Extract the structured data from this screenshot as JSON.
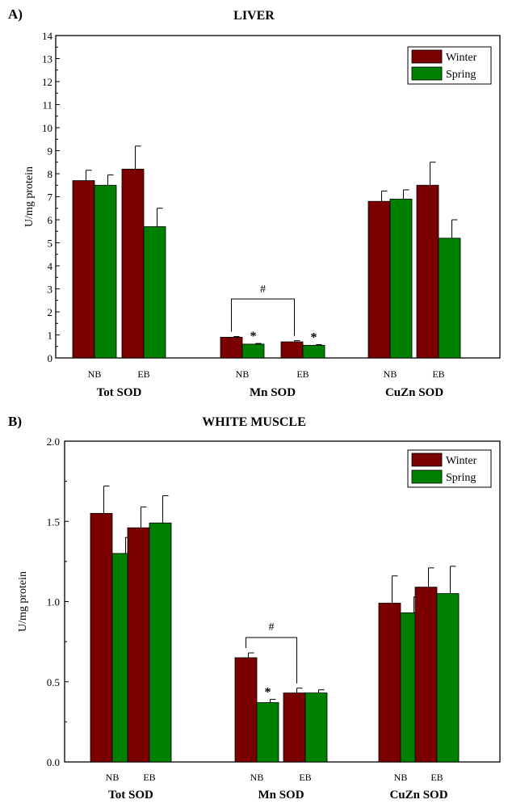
{
  "panels": [
    {
      "label": "A)",
      "title": "LIVER"
    },
    {
      "label": "B)",
      "title": "WHITE MUSCLE"
    }
  ],
  "colors": {
    "winter": "#7a0000",
    "spring": "#008000"
  },
  "chart_data": [
    {
      "type": "bar",
      "title": "LIVER",
      "ylabel": "U/mg protein",
      "xlabel": "",
      "ylim": [
        0,
        14
      ],
      "yticks": [
        "0",
        "1",
        "2",
        "3",
        "4",
        "5",
        "6",
        "7",
        "8",
        "9",
        "10",
        "11",
        "12",
        "13",
        "14"
      ],
      "groups": [
        "Tot SOD",
        "Mn SOD",
        "CuZn SOD"
      ],
      "subcategories": [
        "NB",
        "EB"
      ],
      "series": [
        {
          "name": "Winter",
          "values": [
            [
              7.7,
              8.2
            ],
            [
              0.9,
              0.7
            ],
            [
              6.8,
              7.5
            ]
          ],
          "errors": [
            [
              0.45,
              1.0
            ],
            [
              0.03,
              0.05
            ],
            [
              0.45,
              1.0
            ]
          ]
        },
        {
          "name": "Spring",
          "values": [
            [
              7.5,
              5.7
            ],
            [
              0.6,
              0.55
            ],
            [
              6.9,
              5.2
            ]
          ],
          "errors": [
            [
              0.45,
              0.8
            ],
            [
              0.03,
              0.03
            ],
            [
              0.4,
              0.8
            ]
          ]
        }
      ],
      "annotations": [
        {
          "text": "*",
          "group": 1,
          "sub": 0,
          "series": 1
        },
        {
          "text": "*",
          "group": 1,
          "sub": 1,
          "series": 1
        },
        {
          "text": "#",
          "group": 1,
          "bracket": true
        }
      ],
      "legend": "top-right"
    },
    {
      "type": "bar",
      "title": "WHITE MUSCLE",
      "ylabel": "U/mg protein",
      "xlabel": "",
      "ylim": [
        0,
        2.0
      ],
      "yticks": [
        "0.0",
        "0.5",
        "1.0",
        "1.5",
        "2.0"
      ],
      "groups": [
        "Tot SOD",
        "Mn SOD",
        "CuZn SOD"
      ],
      "subcategories": [
        "NB",
        "EB"
      ],
      "series": [
        {
          "name": "Winter",
          "values": [
            [
              1.55,
              1.46
            ],
            [
              0.65,
              0.43
            ],
            [
              0.99,
              1.09
            ]
          ],
          "errors": [
            [
              0.17,
              0.13
            ],
            [
              0.03,
              0.03
            ],
            [
              0.17,
              0.12
            ]
          ]
        },
        {
          "name": "Spring",
          "values": [
            [
              1.3,
              1.49
            ],
            [
              0.37,
              0.43
            ],
            [
              0.93,
              1.05
            ]
          ],
          "errors": [
            [
              0.1,
              0.17
            ],
            [
              0.02,
              0.02
            ],
            [
              0.1,
              0.17
            ]
          ]
        }
      ],
      "annotations": [
        {
          "text": "*",
          "group": 1,
          "sub": 0,
          "series": 1
        },
        {
          "text": "#",
          "group": 1,
          "bracket": true
        }
      ],
      "legend": "top-right"
    }
  ]
}
